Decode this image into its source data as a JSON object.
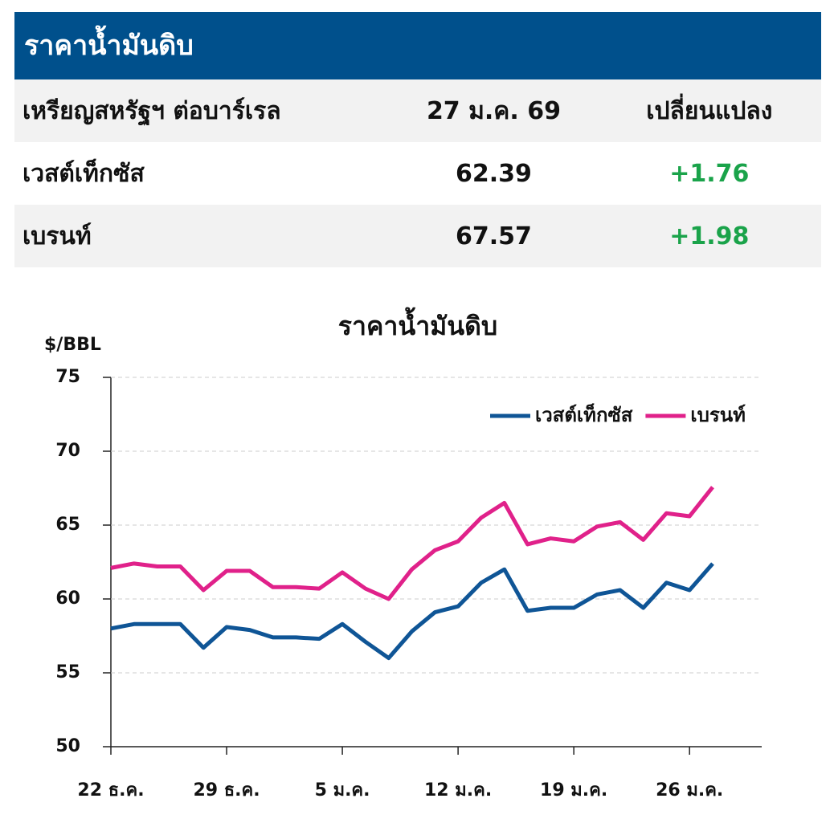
{
  "table": {
    "title": "ราคาน้ำมันดิบ",
    "header": [
      "เหรียญสหรัฐฯ ต่อบาร์เรล",
      "27 ม.ค. 69",
      "เปลี่ยนแปลง"
    ],
    "rows": [
      [
        "เวสต์เท็กซัส",
        "62.39",
        "+1.76"
      ],
      [
        "เบรนท์",
        "67.57",
        "+1.98"
      ]
    ]
  },
  "chart_data": {
    "type": "line",
    "title": "ราคาน้ำมันดิบ",
    "y_label": "$/BBL",
    "categories": [
      "22 ธ.ค.",
      null,
      null,
      null,
      null,
      "29 ธ.ค.",
      null,
      null,
      null,
      null,
      "5 ม.ค.",
      null,
      null,
      null,
      null,
      "12 ม.ค.",
      null,
      null,
      null,
      null,
      "19 ม.ค.",
      null,
      null,
      null,
      null,
      "26 ม.ค.",
      null
    ],
    "series": [
      {
        "name": "เวสต์เท็กซัส",
        "color": "#0f5596",
        "values": [
          58.0,
          58.3,
          58.3,
          58.3,
          56.7,
          58.1,
          57.9,
          57.4,
          57.4,
          57.3,
          58.3,
          57.1,
          56.0,
          57.8,
          59.1,
          59.5,
          61.1,
          62.0,
          59.2,
          59.4,
          59.4,
          60.3,
          60.6,
          59.4,
          61.1,
          60.6,
          62.39
        ]
      },
      {
        "name": "เบรนท์",
        "color": "#e0218a",
        "values": [
          62.1,
          62.4,
          62.2,
          62.2,
          60.6,
          61.9,
          61.9,
          60.8,
          60.8,
          60.7,
          61.8,
          60.7,
          60.0,
          62.0,
          63.3,
          63.9,
          65.5,
          66.5,
          63.7,
          64.1,
          63.9,
          64.9,
          65.2,
          64.0,
          65.8,
          65.6,
          67.57
        ]
      }
    ],
    "ylim": [
      50,
      75
    ],
    "yticks": [
      50,
      55,
      60,
      65,
      70,
      75
    ],
    "grid": true,
    "legend": "top-right"
  }
}
